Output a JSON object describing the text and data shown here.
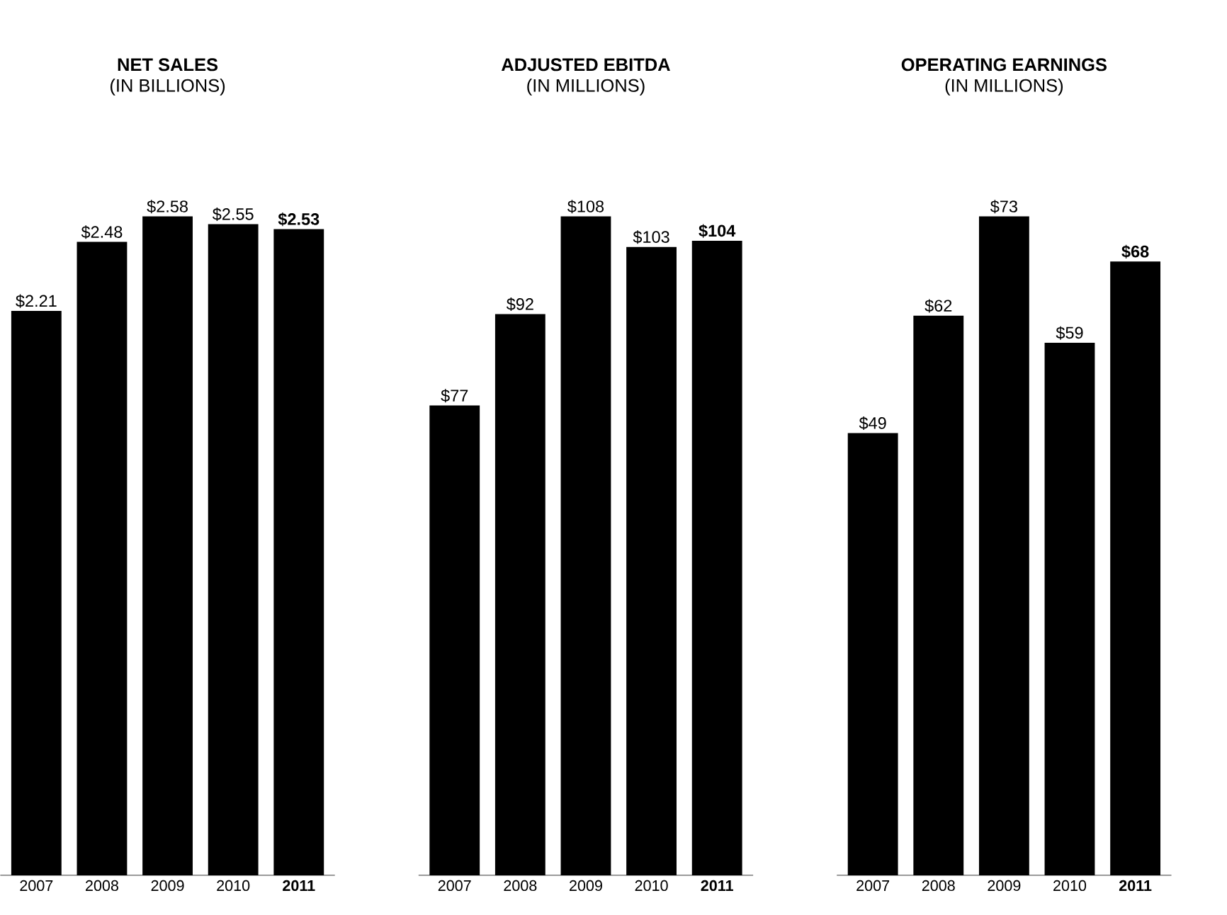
{
  "chart_data": [
    {
      "type": "bar",
      "title": "NET SALES",
      "subtitle": "(IN BILLIONS)",
      "categories": [
        "2007",
        "2008",
        "2009",
        "2010",
        "**2011**"
      ],
      "values": [
        2.21,
        2.48,
        2.58,
        2.55,
        2.53
      ],
      "value_labels": [
        "$2.21",
        "$2.48",
        "$2.58",
        "$2.55",
        "**$2.53**"
      ],
      "color": "#000000"
    },
    {
      "type": "bar",
      "title": "ADJUSTED EBITDA",
      "subtitle": "(IN MILLIONS)",
      "categories": [
        "2007",
        "2008",
        "2009",
        "2010",
        "**2011**"
      ],
      "values": [
        77,
        92,
        108,
        103,
        104
      ],
      "value_labels": [
        "$77",
        "$92",
        "$108",
        "$103",
        "**$104**"
      ],
      "color": "#000000"
    },
    {
      "type": "bar",
      "title": "OPERATING EARNINGS",
      "subtitle": "(IN MILLIONS)",
      "categories": [
        "2007",
        "2008",
        "2009",
        "2010",
        "**2011**"
      ],
      "values": [
        49,
        62,
        73,
        59,
        68
      ],
      "value_labels": [
        "$49",
        "$62",
        "$73",
        "$59",
        "**$68**"
      ],
      "color": "#000000"
    }
  ]
}
